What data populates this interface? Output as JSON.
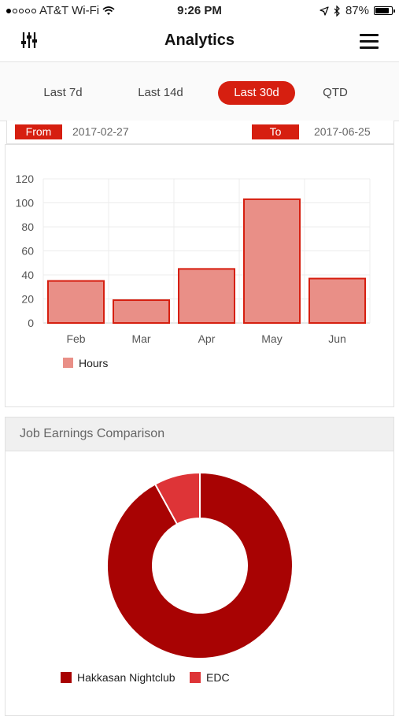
{
  "status_bar": {
    "carrier": "AT&T Wi-Fi",
    "time": "9:26 PM",
    "battery_percent": "87%",
    "battery_level": 0.87,
    "signal_dots_filled": 1,
    "signal_dots_total": 5
  },
  "nav": {
    "title": "Analytics",
    "filter_icon": "sliders-icon",
    "menu_icon": "hamburger-menu-icon"
  },
  "range_tabs": [
    {
      "label": "Last 7d",
      "active": false
    },
    {
      "label": "Last 14d",
      "active": false
    },
    {
      "label": "Last 30d",
      "active": true
    },
    {
      "label": "QTD",
      "active": false
    }
  ],
  "date_range": {
    "from_label": "From",
    "from_value": "2017-02-27",
    "to_label": "To",
    "to_value": "2017-06-25"
  },
  "donut_card": {
    "title": "Job Earnings Comparison"
  },
  "colors": {
    "accent": "#d61f10",
    "bar_fill": "#e98f87",
    "bar_border": "#d61f10",
    "slice_primary": "#a80303",
    "slice_secondary": "#de3437"
  },
  "chart_data": [
    {
      "type": "bar",
      "categories": [
        "Feb",
        "Mar",
        "Apr",
        "May",
        "Jun"
      ],
      "series": [
        {
          "name": "Hours",
          "values": [
            35,
            19,
            45,
            103,
            37
          ]
        }
      ],
      "ylim": [
        0,
        120
      ],
      "yticks": [
        0,
        20,
        40,
        60,
        80,
        100,
        120
      ],
      "grid": true,
      "legend": "bottom-left"
    },
    {
      "type": "pie",
      "donut": true,
      "labels": [
        "Hakkasan Nightclub",
        "EDC"
      ],
      "values": [
        92,
        8
      ],
      "legend": "bottom"
    }
  ]
}
